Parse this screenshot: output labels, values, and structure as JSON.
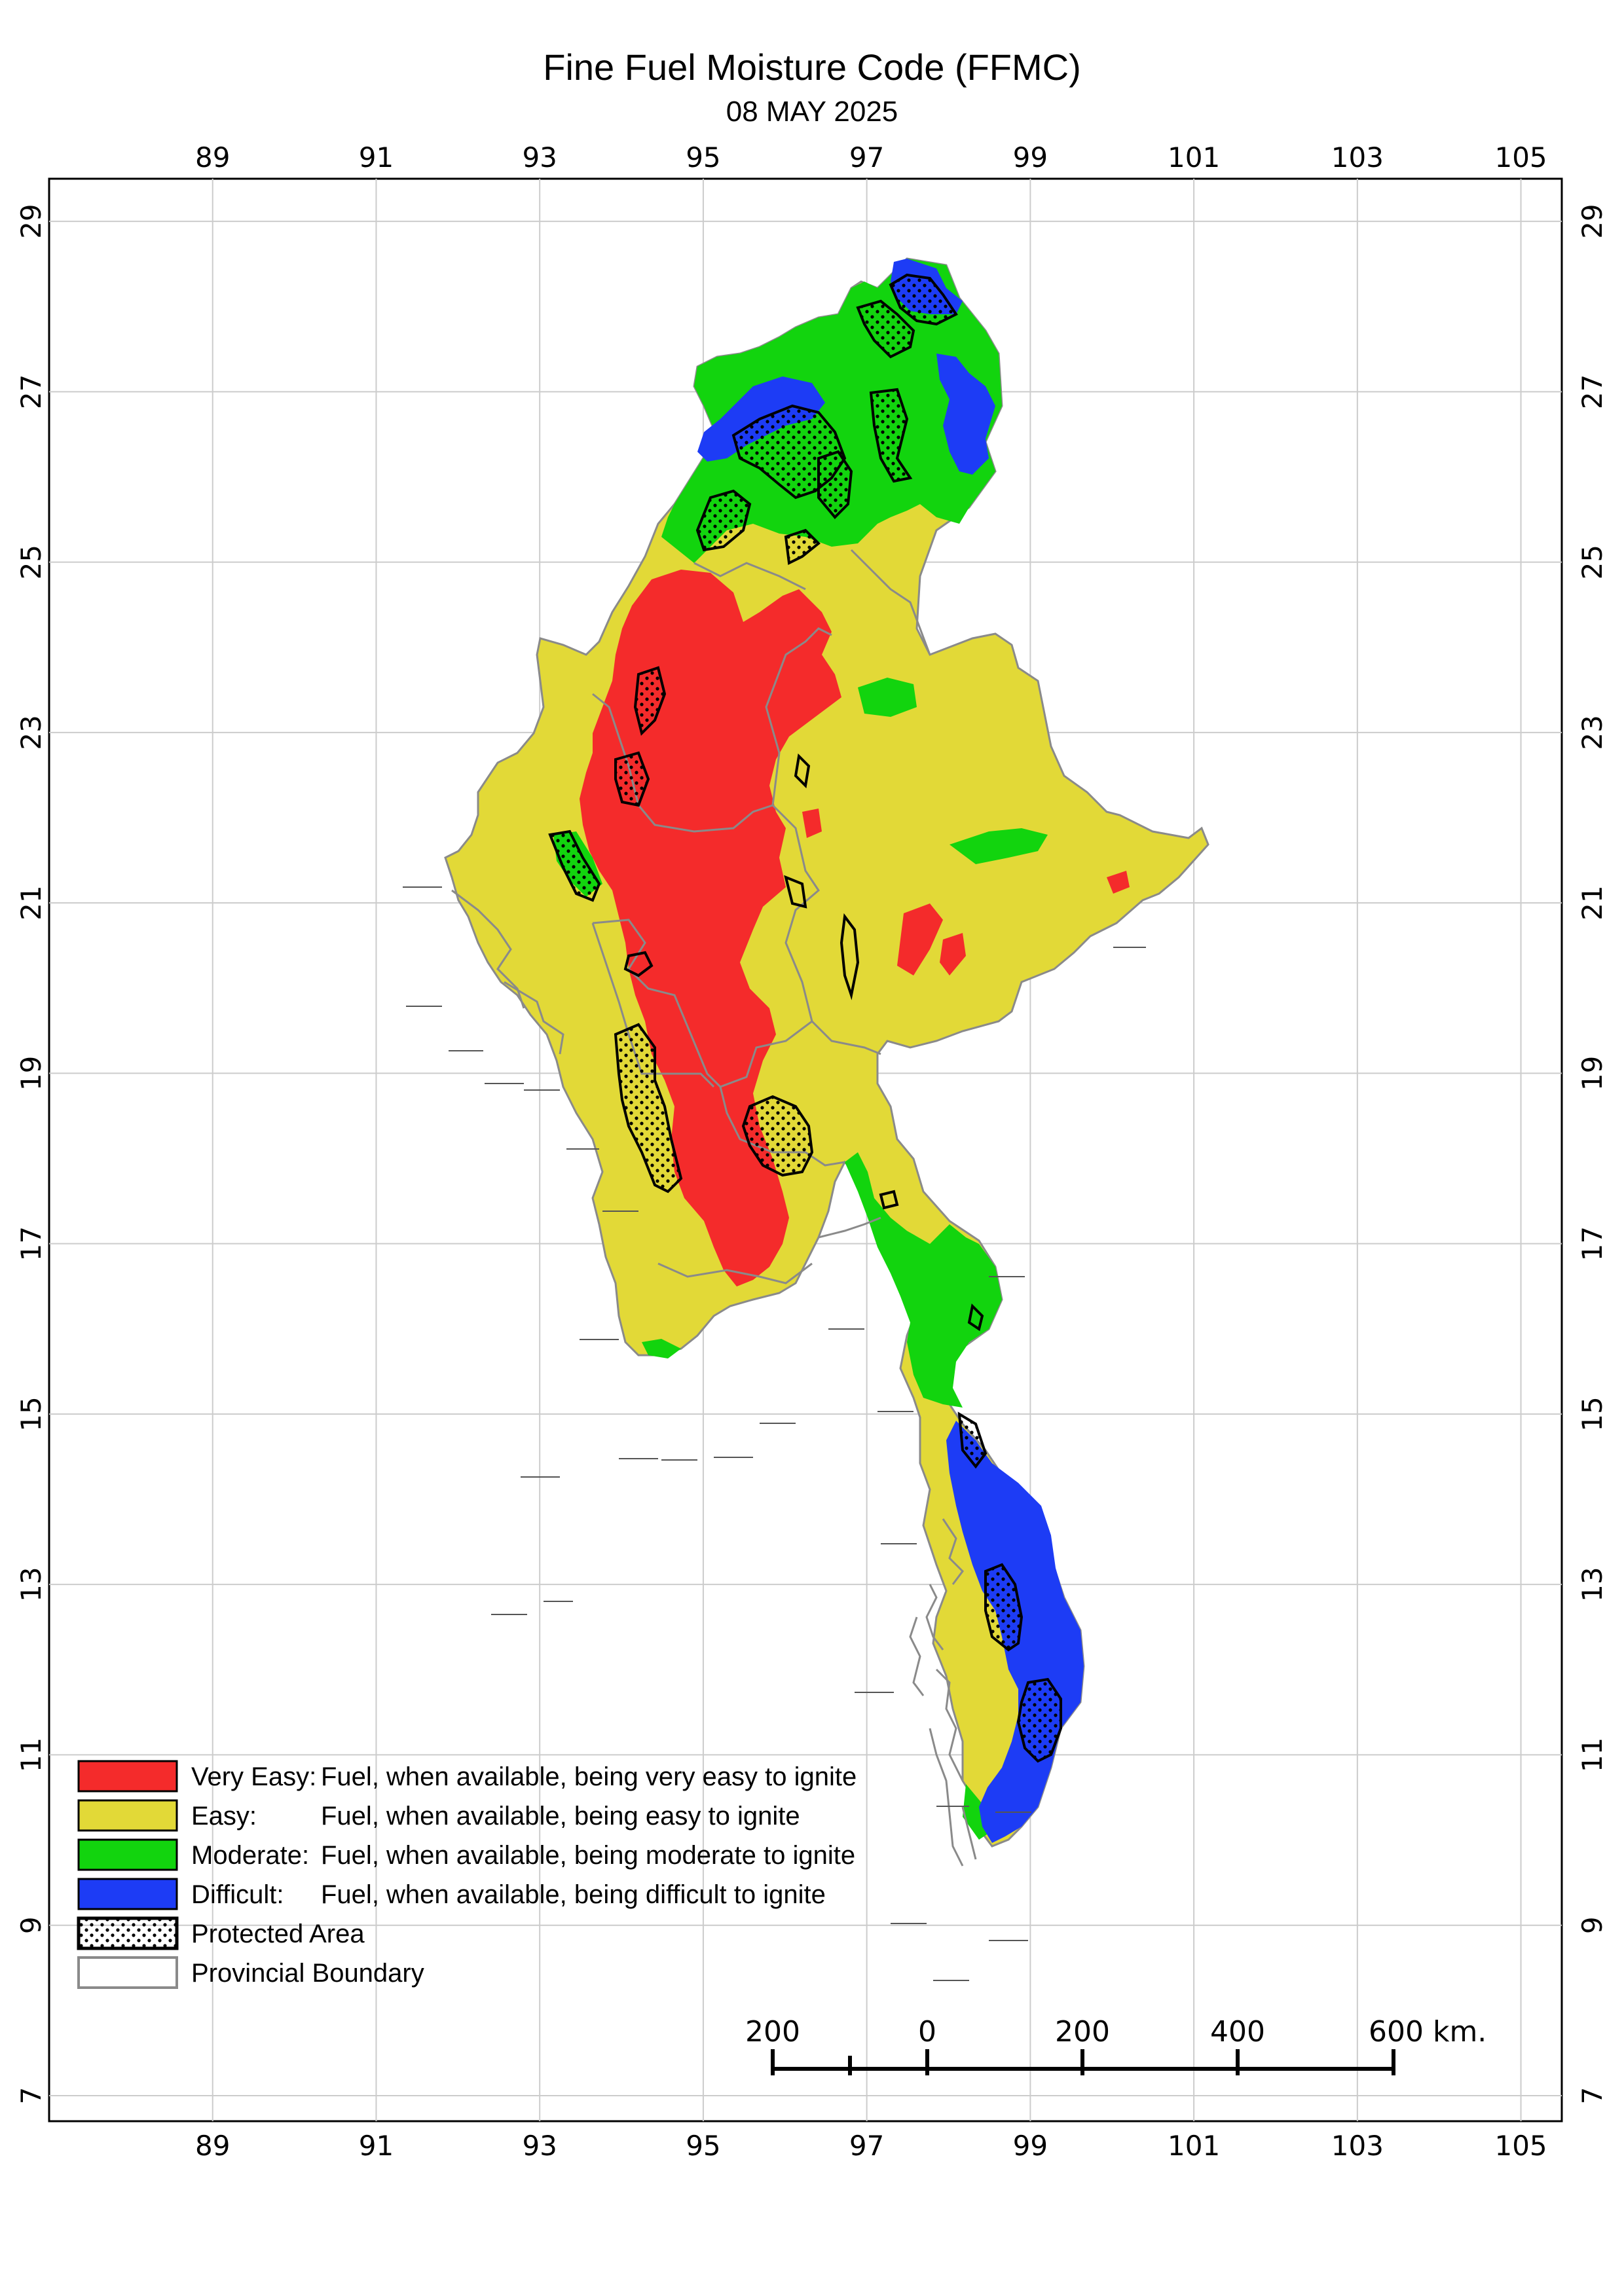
{
  "map": {
    "title": "Fine Fuel Moisture Code (FFMC)",
    "date": "08 MAY 2025",
    "lon_ticks": [
      "89",
      "91",
      "93",
      "95",
      "97",
      "99",
      "101",
      "103",
      "105"
    ],
    "lat_ticks": [
      "29",
      "27",
      "25",
      "23",
      "21",
      "19",
      "17",
      "15",
      "13",
      "11",
      "9",
      "7"
    ],
    "extent": {
      "lon_min": 87.0,
      "lon_max": 105.5,
      "lat_min": 6.7,
      "lat_max": 29.5
    },
    "region_name": "",
    "colors": {
      "very_easy": "#f42b2b",
      "easy": "#e2d937",
      "moderate": "#12d40e",
      "difficult": "#1d3cf5",
      "boundary": "#8a8a8a",
      "grid": "#cccccc"
    }
  },
  "legend": {
    "items": [
      {
        "key": "very_easy",
        "label": "Very Easy:",
        "desc": "Fuel, when available, being very easy to ignite",
        "color": "#f42b2b"
      },
      {
        "key": "easy",
        "label": "Easy:",
        "desc": "Fuel, when available, being easy to ignite",
        "color": "#e2d937"
      },
      {
        "key": "moderate",
        "label": "Moderate:",
        "desc": "Fuel, when available, being moderate to ignite",
        "color": "#12d40e"
      },
      {
        "key": "difficult",
        "label": "Difficult:",
        "desc": "Fuel, when available, being difficult to ignite",
        "color": "#1d3cf5"
      }
    ],
    "protected_area": "Protected Area",
    "provincial_boundary": "Provincial Boundary"
  },
  "scalebar": {
    "labels": [
      "200",
      "0",
      "200",
      "400",
      "600 km."
    ]
  }
}
